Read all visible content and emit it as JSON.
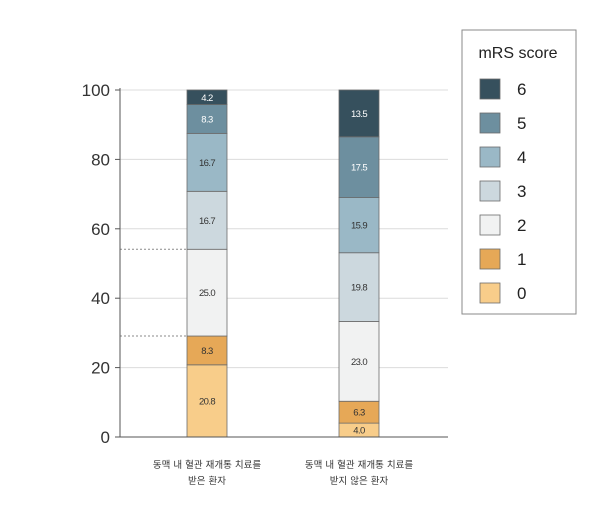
{
  "chart_data": {
    "type": "bar",
    "stacked": true,
    "categories": [
      [
        "동맥 내 혈관 재개통 치료를",
        "받은 환자"
      ],
      [
        "동맥 내 혈관 재개통 치료를",
        "받지 않은 환자"
      ]
    ],
    "ylim": [
      0,
      100
    ],
    "yticks": [
      0,
      20,
      40,
      60,
      80,
      100
    ],
    "grid": true,
    "legend": {
      "title": "mRS score",
      "position": "top-right"
    },
    "series": [
      {
        "name": "0",
        "color": "#f8cd8a",
        "values": [
          20.8,
          4.0
        ],
        "labels": [
          "20.8",
          "4.0"
        ]
      },
      {
        "name": "1",
        "color": "#e6a857",
        "values": [
          8.3,
          6.3
        ],
        "labels": [
          "8.3",
          "6.3"
        ]
      },
      {
        "name": "2",
        "color": "#f1f2f2",
        "values": [
          25.0,
          23.0
        ],
        "labels": [
          "25.0",
          "23.0"
        ]
      },
      {
        "name": "3",
        "color": "#ccd8de",
        "values": [
          16.7,
          19.8
        ],
        "labels": [
          "16.7",
          "19.8"
        ]
      },
      {
        "name": "4",
        "color": "#9ab8c6",
        "values": [
          16.7,
          15.9
        ],
        "labels": [
          "16.7",
          "15.9"
        ]
      },
      {
        "name": "5",
        "color": "#6d8f9f",
        "values": [
          8.3,
          17.5
        ],
        "labels": [
          "8.3",
          "17.5"
        ]
      },
      {
        "name": "6",
        "color": "#36505d",
        "values": [
          4.2,
          13.5
        ],
        "labels": [
          "4.2",
          "13.5"
        ]
      }
    ],
    "reference_lines": [
      29.1,
      54.1
    ]
  }
}
